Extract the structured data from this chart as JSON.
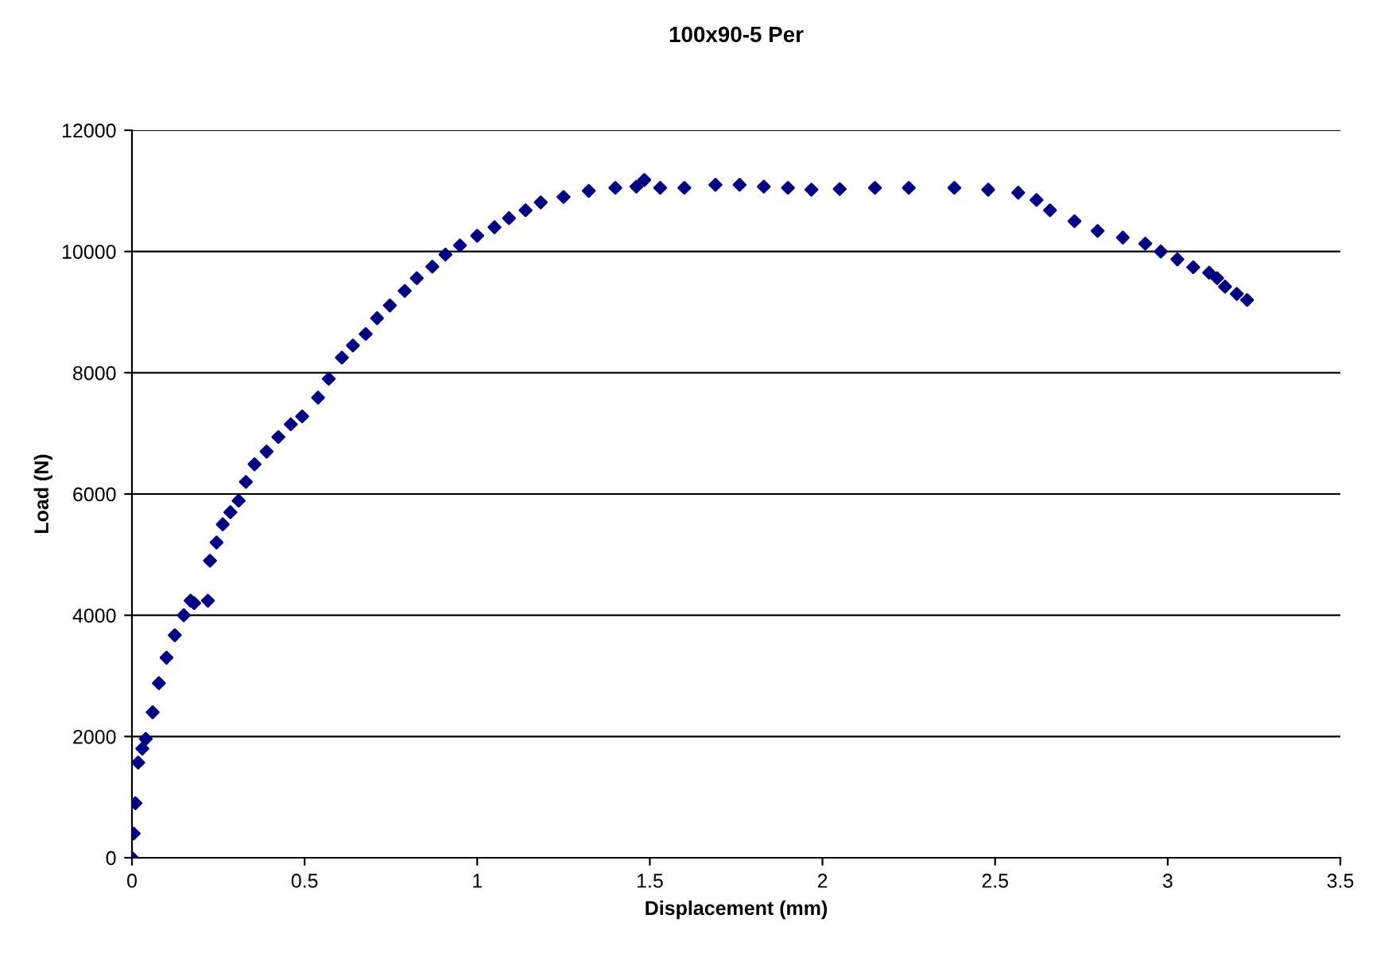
{
  "chart_data": {
    "type": "scatter",
    "title": "100x90-5 Per",
    "xlabel": "Displacement (mm)",
    "ylabel": "Load (N)",
    "series": [
      {
        "color": "#000080",
        "x": [
          0,
          0.005,
          0.01,
          0.018,
          0.03,
          0.04,
          0.06,
          0.078,
          0.1,
          0.124,
          0.15,
          0.17,
          0.18,
          0.22,
          0.226,
          0.245,
          0.263,
          0.285,
          0.309,
          0.33,
          0.355,
          0.39,
          0.424,
          0.46,
          0.493,
          0.539,
          0.57,
          0.608,
          0.64,
          0.677,
          0.71,
          0.747,
          0.79,
          0.825,
          0.87,
          0.908,
          0.95,
          1.0,
          1.05,
          1.092,
          1.14,
          1.184,
          1.25,
          1.323,
          1.4,
          1.461,
          1.484,
          1.53,
          1.6,
          1.69,
          1.76,
          1.83,
          1.9,
          1.968,
          2.05,
          2.152,
          2.25,
          2.382,
          2.48,
          2.567,
          2.62,
          2.659,
          2.73,
          2.797,
          2.87,
          2.935,
          2.98,
          3.028,
          3.074,
          3.12,
          3.143,
          3.166,
          3.2,
          3.23
        ],
        "values": [
          0,
          400,
          900,
          1570,
          1800,
          1960,
          2400,
          2880,
          3300,
          3670,
          4000,
          4240,
          4200,
          4240,
          4900,
          5200,
          5500,
          5700,
          5890,
          6200,
          6490,
          6700,
          6940,
          7150,
          7280,
          7590,
          7900,
          8250,
          8450,
          8640,
          8900,
          9110,
          9350,
          9560,
          9750,
          9950,
          10100,
          10260,
          10400,
          10550,
          10680,
          10810,
          10900,
          11000,
          11050,
          11070,
          11180,
          11050,
          11050,
          11100,
          11100,
          11070,
          11050,
          11020,
          11030,
          11050,
          11050,
          11050,
          11020,
          10970,
          10850,
          10680,
          10500,
          10340,
          10230,
          10130,
          10000,
          9870,
          9740,
          9650,
          9560,
          9420,
          9300,
          9200
        ]
      }
    ],
    "marker": "diamond",
    "grid": "y",
    "xlim": [
      0,
      3.5
    ],
    "xticks": [
      0,
      0.5,
      1,
      1.5,
      2,
      2.5,
      3,
      3.5
    ],
    "ylim": [
      0,
      12000
    ],
    "yticks": [
      0,
      2000,
      4000,
      6000,
      8000,
      10000,
      12000
    ]
  }
}
